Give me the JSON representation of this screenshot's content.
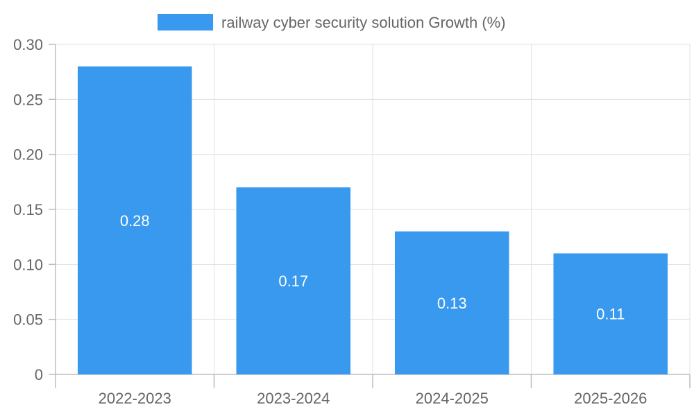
{
  "chart_data": {
    "type": "bar",
    "title": "",
    "xlabel": "",
    "ylabel": "",
    "categories": [
      "2022-2023",
      "2023-2024",
      "2024-2025",
      "2025-2026"
    ],
    "series": [
      {
        "name": "railway cyber security solution Growth (%)",
        "values": [
          0.28,
          0.17,
          0.13,
          0.11
        ],
        "color": "#3899ef"
      }
    ],
    "data_labels": [
      "0.28",
      "0.17",
      "0.13",
      "0.11"
    ],
    "ylim": [
      0,
      0.3
    ],
    "y_ticks": [
      0,
      0.05,
      0.1,
      0.15,
      0.2,
      0.25,
      0.3
    ],
    "y_tick_labels": [
      "0",
      "0.05",
      "0.10",
      "0.15",
      "0.20",
      "0.25",
      "0.30"
    ],
    "grid": true,
    "legend_position": "top-center"
  }
}
